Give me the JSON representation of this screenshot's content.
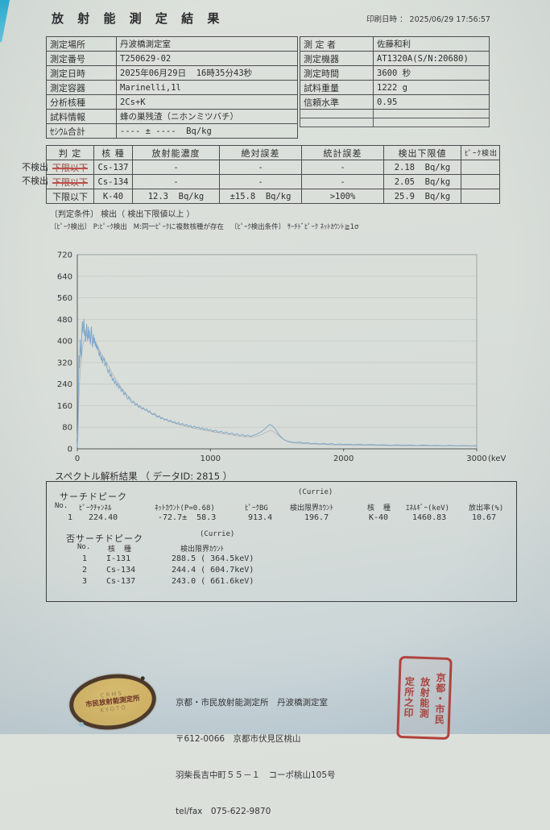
{
  "page": {
    "title": "放 射 能 測 定 結 果",
    "print_line": "印刷日時 ： 2025/06/29 17:56:57"
  },
  "info_left": {
    "rows": [
      {
        "label": "測定場所",
        "value": "丹波橋測定室"
      },
      {
        "label": "測定番号",
        "value": "T250629-02"
      },
      {
        "label": "測定日時",
        "value": "2025年06月29日  16時35分43秒"
      },
      {
        "label": "測定容器",
        "value": "Marinelli,1l"
      },
      {
        "label": "分析核種",
        "value": "2Cs+K"
      },
      {
        "label": "試料情報",
        "value": "蜂の巣残渣（ニホンミツバチ）"
      },
      {
        "label": "ｾｼｳﾑ合計",
        "value": "---- ± ----  Bq/kg"
      }
    ]
  },
  "info_right": {
    "rows": [
      {
        "label": "測 定 者",
        "value": "佐藤和利"
      },
      {
        "label": "測定機器",
        "value": "AT1320A(S/N:20680)"
      },
      {
        "label": "測定時間",
        "value": "3600 秒"
      },
      {
        "label": "試料重量",
        "value": "1222 g"
      },
      {
        "label": "信頼水準",
        "value": "0.95"
      }
    ]
  },
  "results_table": {
    "headers": [
      "判 定",
      "核 種",
      "放射能濃度",
      "絶対誤差",
      "統計誤差",
      "検出下限値",
      "ﾋﾟｰｸ検出"
    ],
    "rows": [
      {
        "annotation": "不検出",
        "judgement": "下限以下",
        "nuclide": "Cs-137",
        "concentration": "-",
        "abs_error": "-",
        "stat_error": "-",
        "detection_limit": "2.18  Bq/kg",
        "peak": ""
      },
      {
        "annotation": "不検出",
        "judgement": "下限以下",
        "nuclide": "Cs-134",
        "concentration": "-",
        "abs_error": "-",
        "stat_error": "-",
        "detection_limit": "2.05  Bq/kg",
        "peak": ""
      },
      {
        "annotation": "",
        "judgement": "下限以下",
        "nuclide": "K-40",
        "concentration": "12.3  Bq/kg",
        "abs_error": "±15.8  Bq/kg",
        "stat_error": ">100%",
        "detection_limit": "25.9  Bq/kg",
        "peak": ""
      }
    ]
  },
  "notes": {
    "line1": "〔判定条件〕 検出（ 検出下限値以上 ）",
    "line2": "〔ﾋﾟｰｸ検出〕 P:ﾋﾟｰｸ検出   M:同一ﾋﾟｰｸに複数核種が存在   〔ﾋﾟｰｸ検出条件〕 ｻｰﾁﾄﾞﾋﾟｰｸ ﾈｯﾄｶｳﾝﾄ≧1σ"
  },
  "chart_data": {
    "type": "line",
    "title": "",
    "xlabel": "(keV)",
    "ylabel": "",
    "xlim": [
      0,
      3000
    ],
    "ylim": [
      0,
      720
    ],
    "xticks": [
      0,
      1000,
      2000,
      3000
    ],
    "yticks": [
      0,
      80,
      160,
      240,
      320,
      400,
      480,
      560,
      640,
      720
    ],
    "grid": "horizontal",
    "legend": "none",
    "series": [
      {
        "name": "smoothed-background",
        "color": "#b3abb0",
        "width": 0.7,
        "points": [
          [
            0,
            40
          ],
          [
            20,
            280
          ],
          [
            40,
            380
          ],
          [
            60,
            415
          ],
          [
            80,
            425
          ],
          [
            100,
            420
          ],
          [
            120,
            408
          ],
          [
            140,
            392
          ],
          [
            160,
            372
          ],
          [
            180,
            352
          ],
          [
            200,
            338
          ],
          [
            230,
            310
          ],
          [
            260,
            282
          ],
          [
            290,
            256
          ],
          [
            320,
            234
          ],
          [
            350,
            214
          ],
          [
            380,
            196
          ],
          [
            410,
            180
          ],
          [
            440,
            166
          ],
          [
            470,
            155
          ],
          [
            500,
            146
          ],
          [
            540,
            136
          ],
          [
            580,
            127
          ],
          [
            620,
            118
          ],
          [
            660,
            109
          ],
          [
            700,
            101
          ],
          [
            740,
            94
          ],
          [
            780,
            88
          ],
          [
            820,
            83
          ],
          [
            860,
            78
          ],
          [
            900,
            74
          ],
          [
            940,
            70
          ],
          [
            980,
            67
          ],
          [
            1020,
            63
          ],
          [
            1060,
            60
          ],
          [
            1100,
            56
          ],
          [
            1140,
            53
          ],
          [
            1180,
            50
          ],
          [
            1220,
            47
          ],
          [
            1260,
            45
          ],
          [
            1300,
            44
          ],
          [
            1340,
            46
          ],
          [
            1380,
            52
          ],
          [
            1420,
            62
          ],
          [
            1450,
            68
          ],
          [
            1480,
            62
          ],
          [
            1510,
            50
          ],
          [
            1540,
            38
          ],
          [
            1570,
            29
          ],
          [
            1600,
            24
          ],
          [
            1650,
            21
          ],
          [
            1700,
            19
          ],
          [
            1750,
            18
          ],
          [
            1800,
            17
          ],
          [
            1900,
            15
          ],
          [
            2000,
            14
          ],
          [
            2200,
            13
          ],
          [
            2400,
            12
          ],
          [
            2600,
            11
          ],
          [
            2800,
            11
          ],
          [
            3000,
            10
          ]
        ]
      },
      {
        "name": "gamma-spectrum",
        "color": "#7fa9c9",
        "width": 1.0,
        "points": [
          [
            0,
            5
          ],
          [
            5,
            60
          ],
          [
            8,
            210
          ],
          [
            12,
            345
          ],
          [
            15,
            300
          ],
          [
            18,
            330
          ],
          [
            22,
            405
          ],
          [
            26,
            360
          ],
          [
            30,
            340
          ],
          [
            34,
            425
          ],
          [
            38,
            472
          ],
          [
            42,
            430
          ],
          [
            46,
            455
          ],
          [
            50,
            480
          ],
          [
            54,
            420
          ],
          [
            58,
            440
          ],
          [
            62,
            398
          ],
          [
            66,
            430
          ],
          [
            70,
            462
          ],
          [
            74,
            418
          ],
          [
            78,
            400
          ],
          [
            82,
            452
          ],
          [
            86,
            410
          ],
          [
            90,
            438
          ],
          [
            94,
            405
          ],
          [
            98,
            388
          ],
          [
            102,
            430
          ],
          [
            106,
            452
          ],
          [
            110,
            408
          ],
          [
            114,
            378
          ],
          [
            118,
            398
          ],
          [
            122,
            424
          ],
          [
            126,
            392
          ],
          [
            130,
            410
          ],
          [
            134,
            382
          ],
          [
            138,
            396
          ],
          [
            142,
            375
          ],
          [
            146,
            388
          ],
          [
            150,
            368
          ],
          [
            155,
            380
          ],
          [
            160,
            358
          ],
          [
            165,
            344
          ],
          [
            170,
            362
          ],
          [
            175,
            342
          ],
          [
            180,
            328
          ],
          [
            185,
            345
          ],
          [
            190,
            318
          ],
          [
            195,
            332
          ],
          [
            200,
            338
          ],
          [
            208,
            308
          ],
          [
            216,
            320
          ],
          [
            224,
            298
          ],
          [
            232,
            282
          ],
          [
            240,
            294
          ],
          [
            248,
            268
          ],
          [
            256,
            278
          ],
          [
            264,
            252
          ],
          [
            272,
            262
          ],
          [
            280,
            242
          ],
          [
            288,
            252
          ],
          [
            296,
            232
          ],
          [
            304,
            244
          ],
          [
            312,
            224
          ],
          [
            320,
            234
          ],
          [
            330,
            212
          ],
          [
            340,
            222
          ],
          [
            350,
            200
          ],
          [
            360,
            210
          ],
          [
            370,
            192
          ],
          [
            380,
            184
          ],
          [
            390,
            194
          ],
          [
            400,
            178
          ],
          [
            412,
            170
          ],
          [
            424,
            176
          ],
          [
            436,
            162
          ],
          [
            448,
            168
          ],
          [
            460,
            154
          ],
          [
            472,
            160
          ],
          [
            484,
            148
          ],
          [
            496,
            153
          ],
          [
            508,
            143
          ],
          [
            520,
            148
          ],
          [
            532,
            136
          ],
          [
            544,
            141
          ],
          [
            556,
            130
          ],
          [
            568,
            126
          ],
          [
            580,
            132
          ],
          [
            592,
            121
          ],
          [
            604,
            117
          ],
          [
            616,
            123
          ],
          [
            628,
            111
          ],
          [
            640,
            116
          ],
          [
            655,
            106
          ],
          [
            670,
            111
          ],
          [
            685,
            101
          ],
          [
            700,
            106
          ],
          [
            715,
            97
          ],
          [
            730,
            101
          ],
          [
            745,
            93
          ],
          [
            760,
            98
          ],
          [
            775,
            90
          ],
          [
            790,
            94
          ],
          [
            805,
            86
          ],
          [
            820,
            91
          ],
          [
            835,
            83
          ],
          [
            850,
            87
          ],
          [
            865,
            79
          ],
          [
            880,
            84
          ],
          [
            895,
            77
          ],
          [
            910,
            81
          ],
          [
            925,
            74
          ],
          [
            940,
            78
          ],
          [
            955,
            71
          ],
          [
            970,
            75
          ],
          [
            985,
            69
          ],
          [
            1000,
            72
          ],
          [
            1020,
            65
          ],
          [
            1040,
            69
          ],
          [
            1060,
            61
          ],
          [
            1080,
            65
          ],
          [
            1100,
            58
          ],
          [
            1120,
            62
          ],
          [
            1140,
            55
          ],
          [
            1160,
            59
          ],
          [
            1180,
            52
          ],
          [
            1200,
            56
          ],
          [
            1220,
            49
          ],
          [
            1240,
            53
          ],
          [
            1260,
            47
          ],
          [
            1280,
            51
          ],
          [
            1300,
            46
          ],
          [
            1320,
            50
          ],
          [
            1340,
            53
          ],
          [
            1360,
            58
          ],
          [
            1380,
            63
          ],
          [
            1400,
            70
          ],
          [
            1415,
            77
          ],
          [
            1430,
            84
          ],
          [
            1445,
            90
          ],
          [
            1460,
            87
          ],
          [
            1475,
            80
          ],
          [
            1490,
            71
          ],
          [
            1505,
            60
          ],
          [
            1520,
            50
          ],
          [
            1535,
            42
          ],
          [
            1550,
            35
          ],
          [
            1570,
            30
          ],
          [
            1590,
            27
          ],
          [
            1610,
            25
          ],
          [
            1640,
            23
          ],
          [
            1670,
            25
          ],
          [
            1700,
            21
          ],
          [
            1730,
            23
          ],
          [
            1760,
            19
          ],
          [
            1790,
            21
          ],
          [
            1820,
            18
          ],
          [
            1850,
            20
          ],
          [
            1880,
            17
          ],
          [
            1910,
            19
          ],
          [
            1940,
            16
          ],
          [
            1970,
            18
          ],
          [
            2000,
            16
          ],
          [
            2040,
            17
          ],
          [
            2080,
            15
          ],
          [
            2120,
            17
          ],
          [
            2160,
            14
          ],
          [
            2200,
            16
          ],
          [
            2250,
            14
          ],
          [
            2300,
            15
          ],
          [
            2350,
            13
          ],
          [
            2400,
            15
          ],
          [
            2450,
            13
          ],
          [
            2500,
            14
          ],
          [
            2550,
            12
          ],
          [
            2600,
            14
          ],
          [
            2650,
            12
          ],
          [
            2700,
            13
          ],
          [
            2750,
            11
          ],
          [
            2800,
            13
          ],
          [
            2850,
            11
          ],
          [
            2900,
            12
          ],
          [
            2950,
            11
          ],
          [
            3000,
            12
          ]
        ]
      }
    ]
  },
  "analysis": {
    "section_label": "スペクトル解析結果 （ データID: 2815 ）",
    "search_peak": {
      "title": "サーチドピーク",
      "currie": "(Currie)",
      "headers": {
        "no": "No.",
        "channel": "ﾋﾟｰｸﾁｬﾝﾈﾙ",
        "net": "ﾈｯﾄｶｳﾝﾄ(P=0.68)",
        "bg": "ﾋﾟｰｸBG",
        "limit": "検出限界ｶｳﾝﾄ",
        "nuclide": "核  種",
        "energy": "ｴﾈﾙｷﾞｰ(keV)",
        "emission": "放出率(%)"
      },
      "row": {
        "no": "1",
        "channel": "224.40",
        "net": "-72.7±  58.3",
        "bg": "913.4",
        "limit": "196.7",
        "nuclide": "K-40",
        "energy": "1460.83",
        "emission": "10.67"
      }
    },
    "rejected_peak": {
      "title": "否サーチドピーク",
      "currie": "(Currie)",
      "headers": {
        "no": "No.",
        "nuclide": "核  種",
        "limit": "検出限界ｶｳﾝﾄ"
      },
      "rows": [
        {
          "no": "1",
          "nuclide": "I-131",
          "limit": "288.5 ( 364.5keV)"
        },
        {
          "no": "2",
          "nuclide": "Cs-134",
          "limit": "244.4 ( 604.7keV)"
        },
        {
          "no": "3",
          "nuclide": "Cs-137",
          "limit": "243.0 ( 661.6keV)"
        }
      ]
    }
  },
  "footer": {
    "address_lines": [
      "京都・市民放射能測定所　丹波橋測定室",
      "〒612-0066　京都市伏見区桃山",
      "羽柴長吉中町５５－１　コーポ桃山105号",
      "tel/fax　075-622-9870"
    ],
    "oval_stamp": {
      "top": "CRMS",
      "middle": "市民放射能測定所",
      "bottom": "KYOTO"
    },
    "seal_columns": [
      "京都・市民",
      "放射能測",
      "定所之印"
    ]
  },
  "colors": {
    "spectrum_line": "#7fa9c9",
    "background_trace": "#b3abb0",
    "strike_red": "#c0504a",
    "seal_red": "#ad423c",
    "stamp_gold": "#d2b264",
    "desk_cyan": "#27aed6",
    "paper": "#d9ded9"
  }
}
